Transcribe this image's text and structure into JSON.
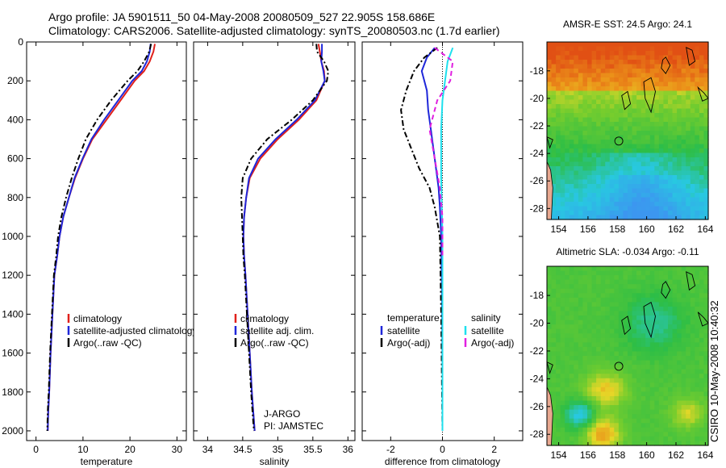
{
  "header": {
    "line1": "Argo profile: JA 5901511_50 04-May-2008 20080509_527 22.905S 158.686E",
    "line2": "Climatology: CARS2006. Satellite-adjusted climatology: synTS_20080503.nc (1.7d earlier)"
  },
  "footer": {
    "stamp": "CSIRO 10-May-2008 10:40:32"
  },
  "colors": {
    "climatology": "#e0201b",
    "satellite": "#1f27d9",
    "argo": "#000000",
    "salinity_satellite": "#1ee0ee",
    "salinity_argo": "#e020e0"
  },
  "chart_data": [
    {
      "id": "temperature",
      "type": "line",
      "xlabel": "temperature",
      "ylabel": "",
      "xlim": [
        -2,
        32
      ],
      "ylim": [
        2050,
        0
      ],
      "xticks": [
        0,
        10,
        20,
        30
      ],
      "yticks": [
        0,
        200,
        400,
        600,
        800,
        1000,
        1200,
        1400,
        1600,
        1800,
        2000
      ],
      "legend": [
        "climatology",
        "satellite-adjusted climatology",
        "Argo(..raw -QC)"
      ],
      "series": [
        {
          "name": "climatology",
          "color": "#e0201b",
          "style": "solid",
          "x": [
            25.3,
            25.0,
            24.2,
            23.0,
            21.0,
            18.0,
            15.0,
            12.0,
            10.0,
            8.3,
            7.0,
            5.8,
            5.0,
            4.5,
            3.9,
            3.5,
            3.1,
            2.8,
            2.6,
            2.5
          ],
          "y": [
            10,
            50,
            100,
            150,
            200,
            300,
            400,
            500,
            600,
            700,
            800,
            900,
            1000,
            1100,
            1200,
            1400,
            1600,
            1800,
            1900,
            2000
          ]
        },
        {
          "name": "satellite-adjusted climatology",
          "color": "#1f27d9",
          "style": "solid",
          "x": [
            24.4,
            24.2,
            23.6,
            22.5,
            20.5,
            17.5,
            14.5,
            11.8,
            9.9,
            8.2,
            7.0,
            5.8,
            5.0,
            4.5,
            3.9,
            3.5,
            3.1,
            2.8,
            2.6,
            2.5
          ],
          "y": [
            10,
            50,
            100,
            150,
            200,
            300,
            400,
            500,
            600,
            700,
            800,
            900,
            1000,
            1100,
            1200,
            1400,
            1600,
            1800,
            1900,
            2000
          ]
        },
        {
          "name": "Argo(..raw -QC)",
          "color": "#000000",
          "style": "dashdot",
          "x": [
            24.5,
            24.1,
            23.0,
            21.6,
            19.5,
            16.0,
            13.0,
            10.6,
            9.0,
            7.6,
            6.4,
            5.4,
            4.7,
            4.3,
            3.8,
            3.4,
            3.0,
            2.7,
            2.5,
            2.4
          ],
          "y": [
            10,
            50,
            100,
            150,
            200,
            300,
            400,
            500,
            600,
            700,
            800,
            900,
            1000,
            1100,
            1200,
            1400,
            1600,
            1800,
            1900,
            2000
          ]
        }
      ]
    },
    {
      "id": "salinity",
      "type": "line",
      "xlabel": "salinity",
      "ylabel": "",
      "xlim": [
        33.8,
        36.1
      ],
      "ylim": [
        2050,
        0
      ],
      "xticks": [
        34,
        34.5,
        35,
        35.5,
        36
      ],
      "legend": [
        "climatology",
        "satellite adj. clim.",
        "Argo(..raw -QC)"
      ],
      "annotation": [
        "J-ARGO",
        "PI: JAMSTEC"
      ],
      "series": [
        {
          "name": "climatology",
          "color": "#e0201b",
          "style": "solid",
          "x": [
            35.58,
            35.6,
            35.62,
            35.66,
            35.67,
            35.55,
            35.3,
            35.0,
            34.75,
            34.6,
            34.55,
            34.52,
            34.51,
            34.52,
            34.54,
            34.57,
            34.6,
            34.63,
            34.65,
            34.67
          ],
          "y": [
            10,
            50,
            100,
            150,
            200,
            300,
            400,
            500,
            600,
            700,
            800,
            900,
            1000,
            1100,
            1200,
            1400,
            1600,
            1800,
            1900,
            2000
          ]
        },
        {
          "name": "satellite adj. clim.",
          "color": "#1f27d9",
          "style": "solid",
          "x": [
            35.63,
            35.63,
            35.62,
            35.65,
            35.67,
            35.53,
            35.27,
            34.97,
            34.72,
            34.59,
            34.55,
            34.52,
            34.51,
            34.52,
            34.54,
            34.57,
            34.6,
            34.63,
            34.65,
            34.67
          ],
          "y": [
            10,
            50,
            100,
            150,
            200,
            300,
            400,
            500,
            600,
            700,
            800,
            900,
            1000,
            1100,
            1200,
            1400,
            1600,
            1800,
            1900,
            2000
          ]
        },
        {
          "name": "Argo(..raw -QC)",
          "color": "#000000",
          "style": "dashdot",
          "x": [
            35.55,
            35.56,
            35.66,
            35.72,
            35.7,
            35.5,
            35.2,
            34.85,
            34.62,
            34.5,
            34.48,
            34.49,
            34.5,
            34.51,
            34.53,
            34.56,
            34.59,
            34.62,
            34.64,
            34.66
          ],
          "y": [
            10,
            50,
            100,
            150,
            200,
            300,
            400,
            500,
            600,
            700,
            800,
            900,
            1000,
            1100,
            1200,
            1400,
            1600,
            1800,
            1900,
            2000
          ]
        }
      ]
    },
    {
      "id": "difference",
      "type": "line",
      "xlabel": "difference from climatology",
      "ylabel": "",
      "xlim": [
        -3.1,
        3.1
      ],
      "ylim": [
        2050,
        0
      ],
      "xticks": [
        -2,
        0,
        2
      ],
      "legend_headers": [
        "temperature",
        "salinity"
      ],
      "legend": [
        "satellite",
        "Argo(-adj)",
        "satellite",
        "Argo(-adj)"
      ],
      "series": [
        {
          "name": "satellite",
          "group": "temperature",
          "color": "#1f27d9",
          "style": "solid",
          "x": [
            -0.3,
            -0.6,
            -0.8,
            -0.6,
            -0.55,
            -0.45,
            -0.35,
            -0.25,
            -0.15,
            -0.1,
            -0.05,
            -0.02,
            0,
            0
          ],
          "y": [
            30,
            80,
            150,
            250,
            350,
            450,
            550,
            650,
            750,
            850,
            1000,
            1300,
            1700,
            2000
          ]
        },
        {
          "name": "Argo(-adj)",
          "group": "temperature",
          "color": "#000000",
          "style": "dashdot",
          "x": [
            -0.2,
            -0.7,
            -1.1,
            -1.4,
            -1.6,
            -1.5,
            -1.2,
            -0.9,
            -0.5,
            -0.3,
            -0.1,
            -0.05,
            0
          ],
          "y": [
            30,
            80,
            150,
            250,
            350,
            450,
            550,
            650,
            750,
            850,
            1000,
            1400,
            2000
          ]
        },
        {
          "name": "satellite",
          "group": "salinity",
          "color": "#1ee0ee",
          "style": "solid",
          "x": [
            0.4,
            0.2,
            0.1,
            0.0,
            -0.05,
            -0.05,
            0,
            0,
            0
          ],
          "y": [
            30,
            100,
            200,
            300,
            450,
            700,
            1000,
            1500,
            2000
          ]
        },
        {
          "name": "Argo(-adj)",
          "group": "salinity",
          "color": "#e020e0",
          "style": "dashed",
          "x": [
            -0.3,
            0.4,
            0.3,
            -0.2,
            -0.5,
            -0.3,
            -0.1,
            0,
            0
          ],
          "y": [
            30,
            100,
            200,
            300,
            450,
            600,
            750,
            900,
            1100
          ]
        }
      ]
    },
    {
      "id": "sst-map",
      "type": "heatmap",
      "title": "AMSR-E SST: 24.5 Argo: 24.1",
      "xlim": [
        153.2,
        164.2
      ],
      "ylim": [
        -28.8,
        -15.9
      ],
      "xticks": [
        154,
        156,
        158,
        160,
        162,
        164
      ],
      "yticks": [
        -18,
        -20,
        -22,
        -24,
        -26,
        -28
      ]
    },
    {
      "id": "sla-map",
      "type": "heatmap",
      "title": "Altimetric SLA: -0.034 Argo: -0.11",
      "xlim": [
        153.2,
        164.2
      ],
      "ylim": [
        -28.8,
        -15.9
      ],
      "xticks": [
        154,
        156,
        158,
        160,
        162,
        164
      ],
      "yticks": [
        -18,
        -20,
        -22,
        -24,
        -26,
        -28
      ]
    }
  ]
}
